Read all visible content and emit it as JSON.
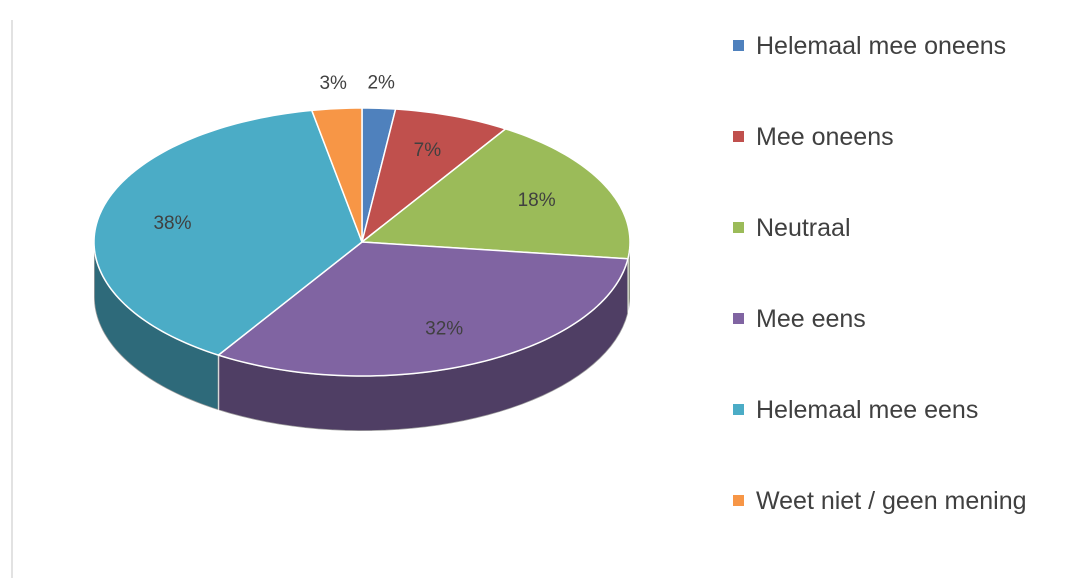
{
  "chart_data": {
    "type": "pie",
    "categories": [
      "Helemaal mee oneens",
      "Mee oneens",
      "Neutraal",
      "Mee eens",
      "Helemaal mee eens",
      "Weet niet / geen mening"
    ],
    "values": [
      2,
      7,
      18,
      32,
      38,
      3
    ],
    "value_labels": [
      "2%",
      "7%",
      "18%",
      "32%",
      "38%",
      "3%"
    ],
    "colors": [
      "#4f81bd",
      "#c0504d",
      "#9bbb59",
      "#8064a2",
      "#4bacc6",
      "#f79646"
    ],
    "legend": "right"
  }
}
